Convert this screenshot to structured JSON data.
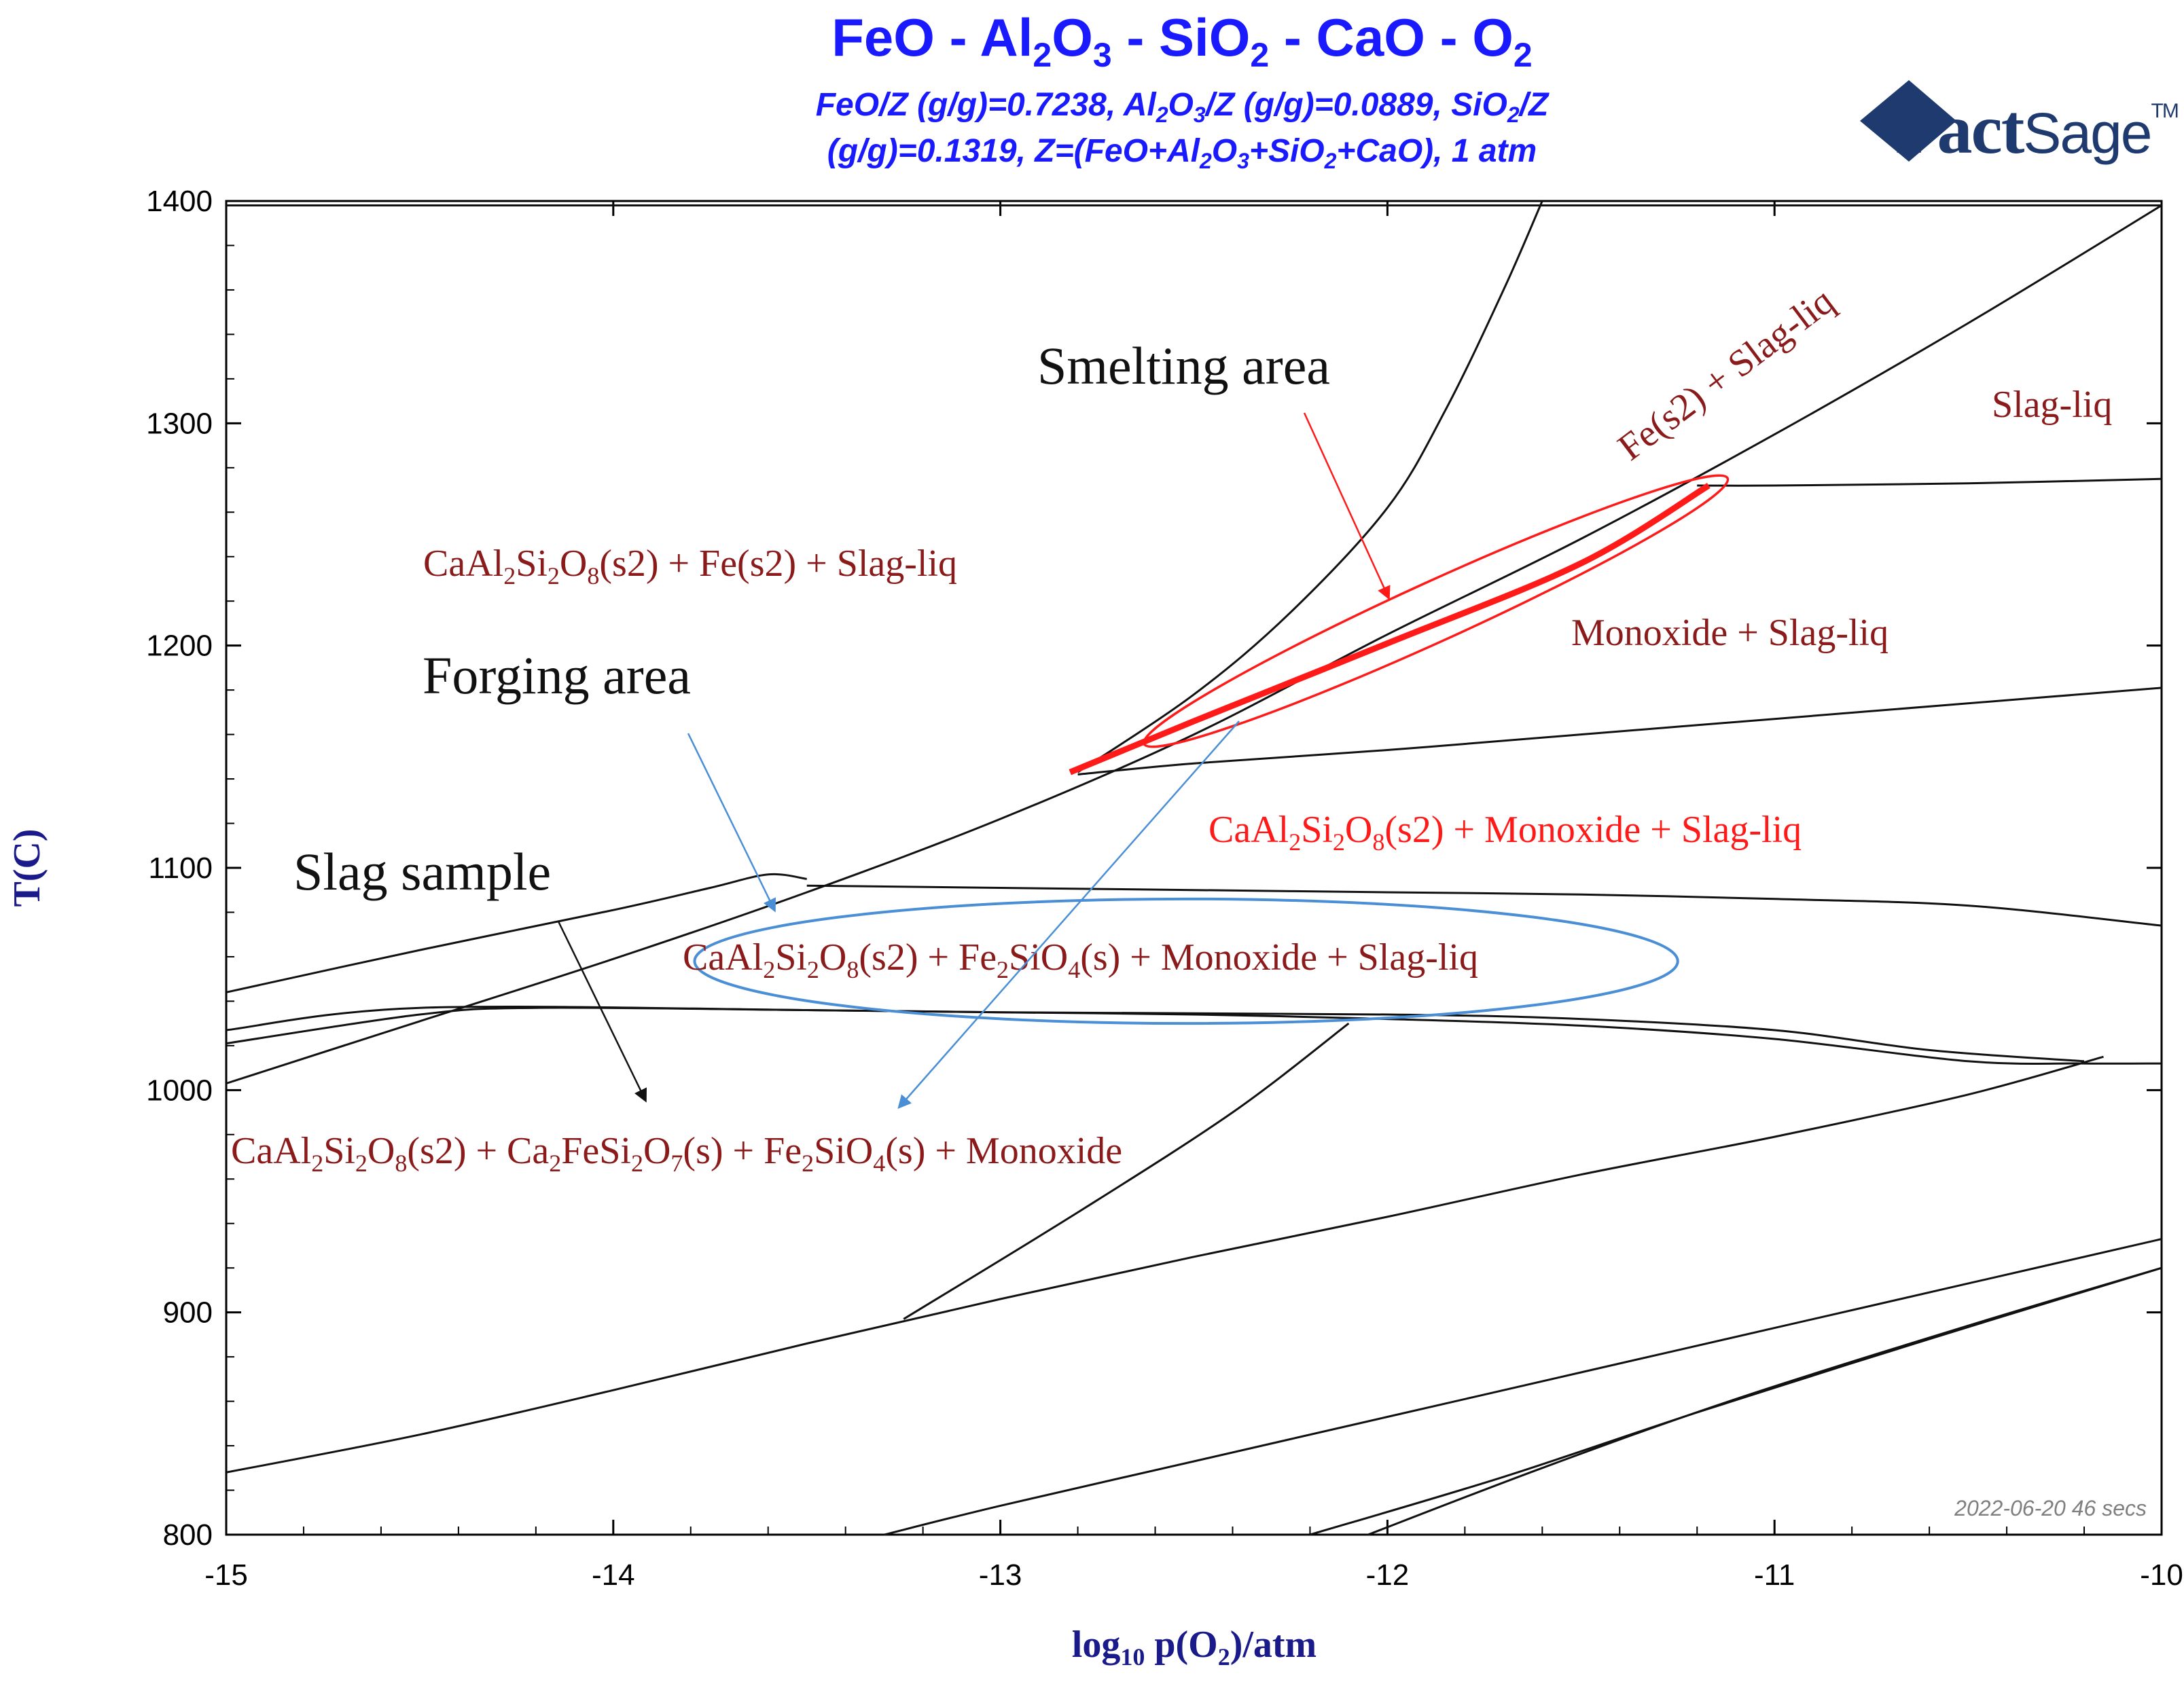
{
  "header": {
    "title": {
      "t1": "FeO - Al",
      "s1": "2",
      "t2": "O",
      "s2": "3",
      "t3": " - SiO",
      "s3": "2",
      "t4": " - CaO - O",
      "s4": "2"
    },
    "subtitle_line1": {
      "t1": "FeO/Z (g/g)=0.7238, Al",
      "s1": "2",
      "t2": "O",
      "s2": "3",
      "t3": "/Z (g/g)=0.0889, SiO",
      "s3": "2",
      "t4": "/Z"
    },
    "subtitle_line2": {
      "t1": "(g/g)=0.1319, Z=(FeO+Al",
      "s1": "2",
      "t2": "O",
      "s2": "3",
      "t3": "+SiO",
      "s3": "2",
      "t4": "+CaO), 1 atm"
    },
    "logo": {
      "main": "Fact",
      "accent": "Sage",
      "tm": "TM"
    },
    "stamp": "2022-06-20  46 secs"
  },
  "chart_data": {
    "type": "phase-diagram",
    "xlabel": {
      "t1": "log",
      "s1": "10",
      "t2": " p(O",
      "s2": "2",
      "t3": ")/atm"
    },
    "ylabel": "T(C)",
    "xlim": [
      -15,
      -10
    ],
    "ylim": [
      800,
      1400
    ],
    "x_ticks": [
      -15,
      -14,
      -13,
      -12,
      -11,
      -10
    ],
    "x_tick_labels": [
      "-15",
      "-14",
      "-13",
      "-12",
      "-11",
      "-10"
    ],
    "y_ticks": [
      800,
      900,
      1000,
      1100,
      1200,
      1300,
      1400
    ],
    "y_tick_labels": [
      "800",
      "900",
      "1000",
      "1100",
      "1200",
      "1300",
      "1400"
    ],
    "boundaries": [
      {
        "points": [
          [
            -15,
            1003
          ],
          [
            -14.5,
            1031
          ],
          [
            -14,
            1059
          ],
          [
            -13.5,
            1089
          ],
          [
            -13,
            1122
          ],
          [
            -12.5,
            1160
          ],
          [
            -12,
            1205
          ],
          [
            -11.5,
            1248
          ],
          [
            -11,
            1295
          ],
          [
            -10.5,
            1345
          ],
          [
            -10,
            1398
          ]
        ]
      },
      {
        "points": [
          [
            -12.8,
            1143
          ],
          [
            -12.5,
            1178
          ],
          [
            -12.25,
            1215
          ],
          [
            -12,
            1262
          ],
          [
            -11.85,
            1306
          ],
          [
            -11.7,
            1360
          ],
          [
            -11.6,
            1400
          ]
        ]
      },
      {
        "points": [
          [
            -11.2,
            1272
          ],
          [
            -11,
            1272
          ],
          [
            -10.5,
            1273
          ],
          [
            -10,
            1275
          ]
        ]
      },
      {
        "points": [
          [
            -12.8,
            1142
          ],
          [
            -12.5,
            1147
          ],
          [
            -12,
            1153
          ],
          [
            -11.5,
            1160
          ],
          [
            -11,
            1167
          ],
          [
            -10.5,
            1174
          ],
          [
            -10,
            1181
          ]
        ]
      },
      {
        "points": [
          [
            -13.5,
            1092
          ],
          [
            -13,
            1091
          ],
          [
            -12.5,
            1090
          ],
          [
            -12,
            1089
          ],
          [
            -11.5,
            1088
          ],
          [
            -11,
            1086
          ],
          [
            -10.5,
            1083
          ],
          [
            -10,
            1074
          ]
        ]
      },
      {
        "points": [
          [
            -15,
            1044
          ],
          [
            -14.5,
            1063
          ],
          [
            -14,
            1081
          ],
          [
            -13.75,
            1091
          ],
          [
            -13.6,
            1097
          ],
          [
            -13.5,
            1095
          ]
        ]
      },
      {
        "points": [
          [
            -15,
            1021
          ],
          [
            -14.5,
            1034
          ],
          [
            -14.2,
            1037
          ],
          [
            -13.5,
            1036
          ],
          [
            -13,
            1035
          ],
          [
            -12.5,
            1034
          ],
          [
            -12,
            1032
          ],
          [
            -11.5,
            1029
          ],
          [
            -11,
            1023
          ],
          [
            -10.5,
            1013
          ],
          [
            -10.2,
            1012
          ],
          [
            -10,
            1012
          ]
        ]
      },
      {
        "points": [
          [
            -15,
            1027
          ],
          [
            -14.5,
            1037
          ],
          [
            -13.5,
            1036
          ],
          [
            -13,
            1035
          ],
          [
            -12,
            1034
          ],
          [
            -11.5,
            1032
          ],
          [
            -11,
            1027
          ],
          [
            -10.6,
            1018
          ],
          [
            -10.2,
            1013
          ]
        ]
      },
      {
        "points": [
          [
            -13.25,
            897
          ],
          [
            -12.8,
            945
          ],
          [
            -12.4,
            990
          ],
          [
            -12.1,
            1030
          ]
        ]
      },
      {
        "points": [
          [
            -15,
            828
          ],
          [
            -14.5,
            845
          ],
          [
            -14,
            865
          ],
          [
            -13.5,
            886
          ],
          [
            -13,
            906
          ],
          [
            -12.5,
            925
          ],
          [
            -12,
            943
          ],
          [
            -11.5,
            962
          ],
          [
            -11,
            979
          ],
          [
            -10.5,
            998
          ],
          [
            -10.15,
            1015
          ]
        ]
      },
      {
        "points": [
          [
            -13.3,
            800
          ],
          [
            -13,
            813
          ],
          [
            -12.5,
            833
          ],
          [
            -12,
            853
          ],
          [
            -11.5,
            873
          ],
          [
            -11,
            893
          ],
          [
            -10.5,
            913
          ],
          [
            -10,
            933
          ]
        ]
      },
      {
        "points": [
          [
            -12.2,
            800
          ],
          [
            -11.7,
            826
          ],
          [
            -11.2,
            855
          ],
          [
            -10.6,
            888
          ],
          [
            -10,
            920
          ]
        ]
      },
      {
        "points": [
          [
            -12.05,
            800
          ],
          [
            -11.6,
            830
          ],
          [
            -11.1,
            861
          ],
          [
            -10.5,
            894
          ],
          [
            -10,
            920
          ]
        ]
      }
    ],
    "highlight_line": {
      "points": [
        [
          -12.82,
          1143
        ],
        [
          -12.5,
          1166
        ],
        [
          -12,
          1201
        ],
        [
          -11.5,
          1237
        ],
        [
          -11.17,
          1272
        ]
      ]
    },
    "smelting_ellipse": {
      "cx": -11.92,
      "cy": 1215,
      "rx": 0.78,
      "ry_deg": 20,
      "angle": 0,
      "endpoints": [
        [
          -12.6,
          1158
        ],
        [
          -11.15,
          1273
        ]
      ]
    },
    "forging_ellipse": {
      "cx": -12.52,
      "cy": 1058,
      "rx": 1.27,
      "ry": 28
    },
    "phase_labels": [
      {
        "id": "fe-slag",
        "text": "Fe(s2) + Slag-liq"
      },
      {
        "id": "slag-liq",
        "text": "Slag-liq"
      },
      {
        "id": "ca-fe-slag",
        "t1": "CaAl",
        "s1": "2",
        "t2": "Si",
        "s2": "2",
        "t3": "O",
        "s3": "8",
        "t4": "(s2) + Fe(s2) + Slag-liq"
      },
      {
        "id": "monoxide-slag",
        "text": "Monoxide + Slag-liq"
      },
      {
        "id": "ca-monoxide-slag",
        "t1": "CaAl",
        "s1": "2",
        "t2": "Si",
        "s2": "2",
        "t3": "O",
        "s3": "8",
        "t4": "(s2) + Monoxide + Slag-liq"
      },
      {
        "id": "ca-fe2sio4-monoxide-slag",
        "t1": "CaAl",
        "s1": "2",
        "t2": "Si",
        "s2": "2",
        "t3": "O",
        "s3": "8",
        "t4": "(s2) + Fe",
        "s4": "2",
        "t5": "SiO",
        "s5": "4",
        "t6": "(s) + Monoxide + Slag-liq"
      },
      {
        "id": "ca-ca2fe-fe2sio4-monoxide",
        "t1": "CaAl",
        "s1": "2",
        "t2": "Si",
        "s2": "2",
        "t3": "O",
        "s3": "8",
        "t4": "(s2) + Ca",
        "s4": "2",
        "t5": "FeSi",
        "s5": "2",
        "t6": "O",
        "s6": "7",
        "t7": "(s) + Fe",
        "s7": "2",
        "t8": "SiO",
        "s8": "4",
        "t9": "(s) + Monoxide"
      }
    ],
    "annotations": {
      "smelting": "Smelting area",
      "forging": "Forging area",
      "slag_sample": "Slag sample"
    },
    "colors": {
      "title": "#1a1aff",
      "axis_label": "#1a1a8a",
      "phase_label": "#8b1a1a",
      "highlight": "#ff1a1a",
      "forging": "#4a8fd6",
      "logo": "#1f3a6e",
      "stamp": "#7f7f7f"
    }
  }
}
